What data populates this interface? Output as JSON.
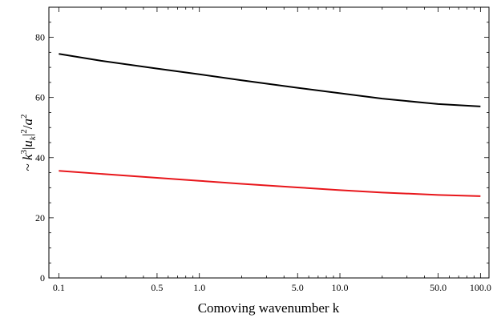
{
  "chart_data": {
    "type": "line",
    "title": "",
    "xlabel": "Comoving wavenumber k",
    "ylabel": "~ k³|u_k|²/a²",
    "xscale": "log",
    "xlim": [
      0.085,
      115
    ],
    "ylim": [
      0,
      90
    ],
    "x_ticks": [
      0.1,
      0.5,
      1.0,
      5.0,
      10.0,
      50.0,
      100.0
    ],
    "x_tick_labels": [
      "0.1",
      "0.5",
      "1.0",
      "5.0",
      "10.0",
      "50.0",
      "100.0"
    ],
    "y_ticks": [
      0,
      20,
      40,
      60,
      80
    ],
    "y_tick_labels": [
      "0",
      "20",
      "40",
      "60",
      "80"
    ],
    "grid": false,
    "legend": "none",
    "series": [
      {
        "color": "#000000",
        "x": [
          0.1,
          0.2,
          0.5,
          1,
          2,
          5,
          10,
          20,
          50,
          100
        ],
        "y": [
          74.5,
          72.2,
          69.6,
          67.7,
          65.7,
          63.2,
          61.4,
          59.6,
          57.8,
          57.0
        ]
      },
      {
        "color": "#e8161b",
        "x": [
          0.1,
          0.2,
          0.5,
          1,
          2,
          5,
          10,
          20,
          50,
          100
        ],
        "y": [
          35.6,
          34.6,
          33.3,
          32.3,
          31.3,
          30.1,
          29.2,
          28.4,
          27.6,
          27.2
        ]
      }
    ]
  }
}
